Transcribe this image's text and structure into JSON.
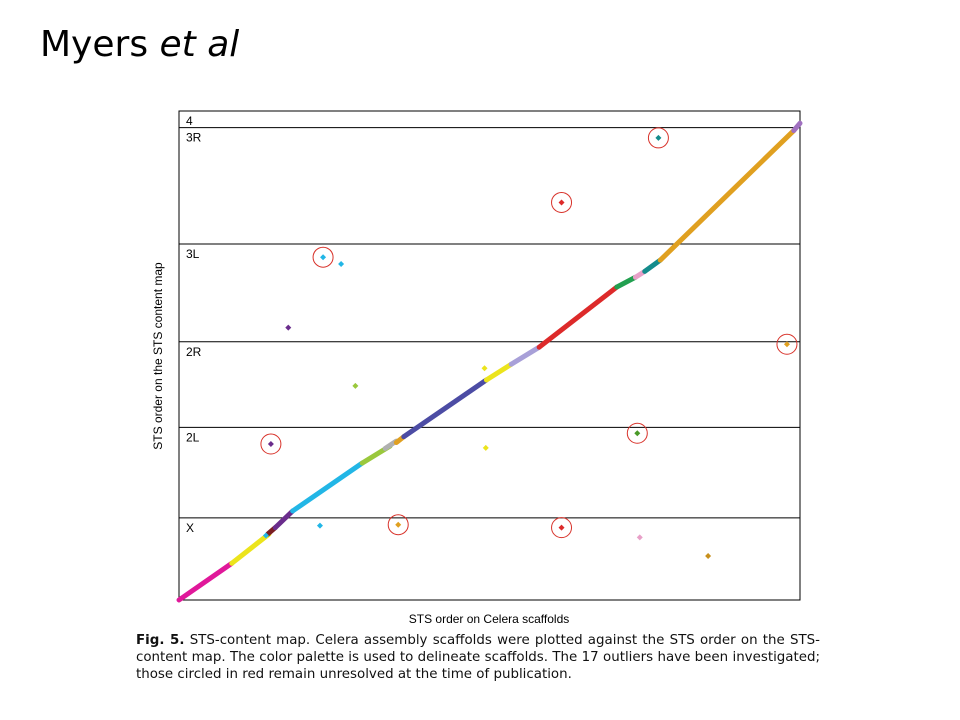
{
  "slide": {
    "title_plain": "Myers ",
    "title_italic": "et al"
  },
  "caption": {
    "label": "Fig. 5.",
    "text": "STS-content map. Celera assembly scaffolds were plotted against the STS order on the STS-content map. The color palette is used to delineate scaffolds. The 17 outliers have been investigated; those circled in red remain unresolved at the time of publication."
  },
  "chart_data": {
    "type": "scatter",
    "title": "",
    "xlabel": "STS order on Celera scaffolds",
    "ylabel": "STS order on the STS content map",
    "xlim": [
      0,
      1
    ],
    "ylim": [
      0,
      1
    ],
    "grid": false,
    "bands": [
      {
        "label": "X",
        "from": 0.0,
        "to": 0.168
      },
      {
        "label": "2L",
        "from": 0.168,
        "to": 0.353
      },
      {
        "label": "2R",
        "from": 0.353,
        "to": 0.528
      },
      {
        "label": "3L",
        "from": 0.528,
        "to": 0.728
      },
      {
        "label": "3R",
        "from": 0.728,
        "to": 0.966
      },
      {
        "label": "4",
        "from": 0.966,
        "to": 1.0
      }
    ],
    "diagonal_segments": [
      {
        "color": "#e0189a",
        "x": [
          0.0,
          0.085
        ],
        "y": [
          0.0,
          0.075
        ]
      },
      {
        "color": "#ece41c",
        "x": [
          0.085,
          0.145
        ],
        "y": [
          0.075,
          0.135
        ]
      },
      {
        "color": "#7b1e22",
        "x": [
          0.143,
          0.155
        ],
        "y": [
          0.135,
          0.148
        ]
      },
      {
        "color": "#6a2c8c",
        "x": [
          0.155,
          0.183
        ],
        "y": [
          0.148,
          0.182
        ]
      },
      {
        "color": "#22b6e6",
        "x": [
          0.183,
          0.295
        ],
        "y": [
          0.182,
          0.28
        ]
      },
      {
        "color": "#9ac83c",
        "x": [
          0.295,
          0.34
        ],
        "y": [
          0.28,
          0.315
        ]
      },
      {
        "color": "#b0b0b0",
        "x": [
          0.332,
          0.35
        ],
        "y": [
          0.31,
          0.325
        ]
      },
      {
        "color": "#e0a020",
        "x": [
          0.35,
          0.362
        ],
        "y": [
          0.322,
          0.334
        ]
      },
      {
        "color": "#4c4ca4",
        "x": [
          0.362,
          0.495
        ],
        "y": [
          0.334,
          0.45
        ]
      },
      {
        "color": "#ece41c",
        "x": [
          0.495,
          0.535
        ],
        "y": [
          0.45,
          0.482
        ]
      },
      {
        "color": "#a8a0d8",
        "x": [
          0.535,
          0.58
        ],
        "y": [
          0.482,
          0.517
        ]
      },
      {
        "color": "#dd2a2a",
        "x": [
          0.58,
          0.705
        ],
        "y": [
          0.517,
          0.64
        ]
      },
      {
        "color": "#22a050",
        "x": [
          0.705,
          0.735
        ],
        "y": [
          0.64,
          0.66
        ]
      },
      {
        "color": "#e8a0c8",
        "x": [
          0.735,
          0.75
        ],
        "y": [
          0.66,
          0.672
        ]
      },
      {
        "color": "#148c8c",
        "x": [
          0.75,
          0.775
        ],
        "y": [
          0.672,
          0.695
        ]
      },
      {
        "color": "#e0a020",
        "x": [
          0.775,
          0.99
        ],
        "y": [
          0.695,
          0.96
        ]
      },
      {
        "color": "#a070c0",
        "x": [
          0.99,
          1.0
        ],
        "y": [
          0.96,
          0.975
        ]
      }
    ],
    "outliers": [
      {
        "x": 0.772,
        "y": 0.945,
        "color": "#148c8c",
        "circled": true
      },
      {
        "x": 0.616,
        "y": 0.813,
        "color": "#dd2a2a",
        "circled": true
      },
      {
        "x": 0.232,
        "y": 0.701,
        "color": "#22b6e6",
        "circled": true
      },
      {
        "x": 0.261,
        "y": 0.687,
        "color": "#22b6e6",
        "circled": false
      },
      {
        "x": 0.176,
        "y": 0.557,
        "color": "#6a2c8c",
        "circled": false
      },
      {
        "x": 0.979,
        "y": 0.523,
        "color": "#e0a020",
        "circled": true
      },
      {
        "x": 0.492,
        "y": 0.474,
        "color": "#ece41c",
        "circled": false
      },
      {
        "x": 0.284,
        "y": 0.438,
        "color": "#9ac83c",
        "circled": false
      },
      {
        "x": 0.738,
        "y": 0.341,
        "color": "#4a9a28",
        "circled": true
      },
      {
        "x": 0.148,
        "y": 0.319,
        "color": "#6a2c8c",
        "circled": true
      },
      {
        "x": 0.494,
        "y": 0.311,
        "color": "#ece41c",
        "circled": false
      },
      {
        "x": 0.227,
        "y": 0.152,
        "color": "#22b6e6",
        "circled": false
      },
      {
        "x": 0.353,
        "y": 0.154,
        "color": "#e0a020",
        "circled": true
      },
      {
        "x": 0.616,
        "y": 0.148,
        "color": "#dd2a2a",
        "circled": true
      },
      {
        "x": 0.14,
        "y": 0.132,
        "color": "#22b6e6",
        "circled": false
      },
      {
        "x": 0.742,
        "y": 0.128,
        "color": "#e8a0c8",
        "circled": false
      },
      {
        "x": 0.852,
        "y": 0.09,
        "color": "#c8901c",
        "circled": false
      }
    ]
  }
}
